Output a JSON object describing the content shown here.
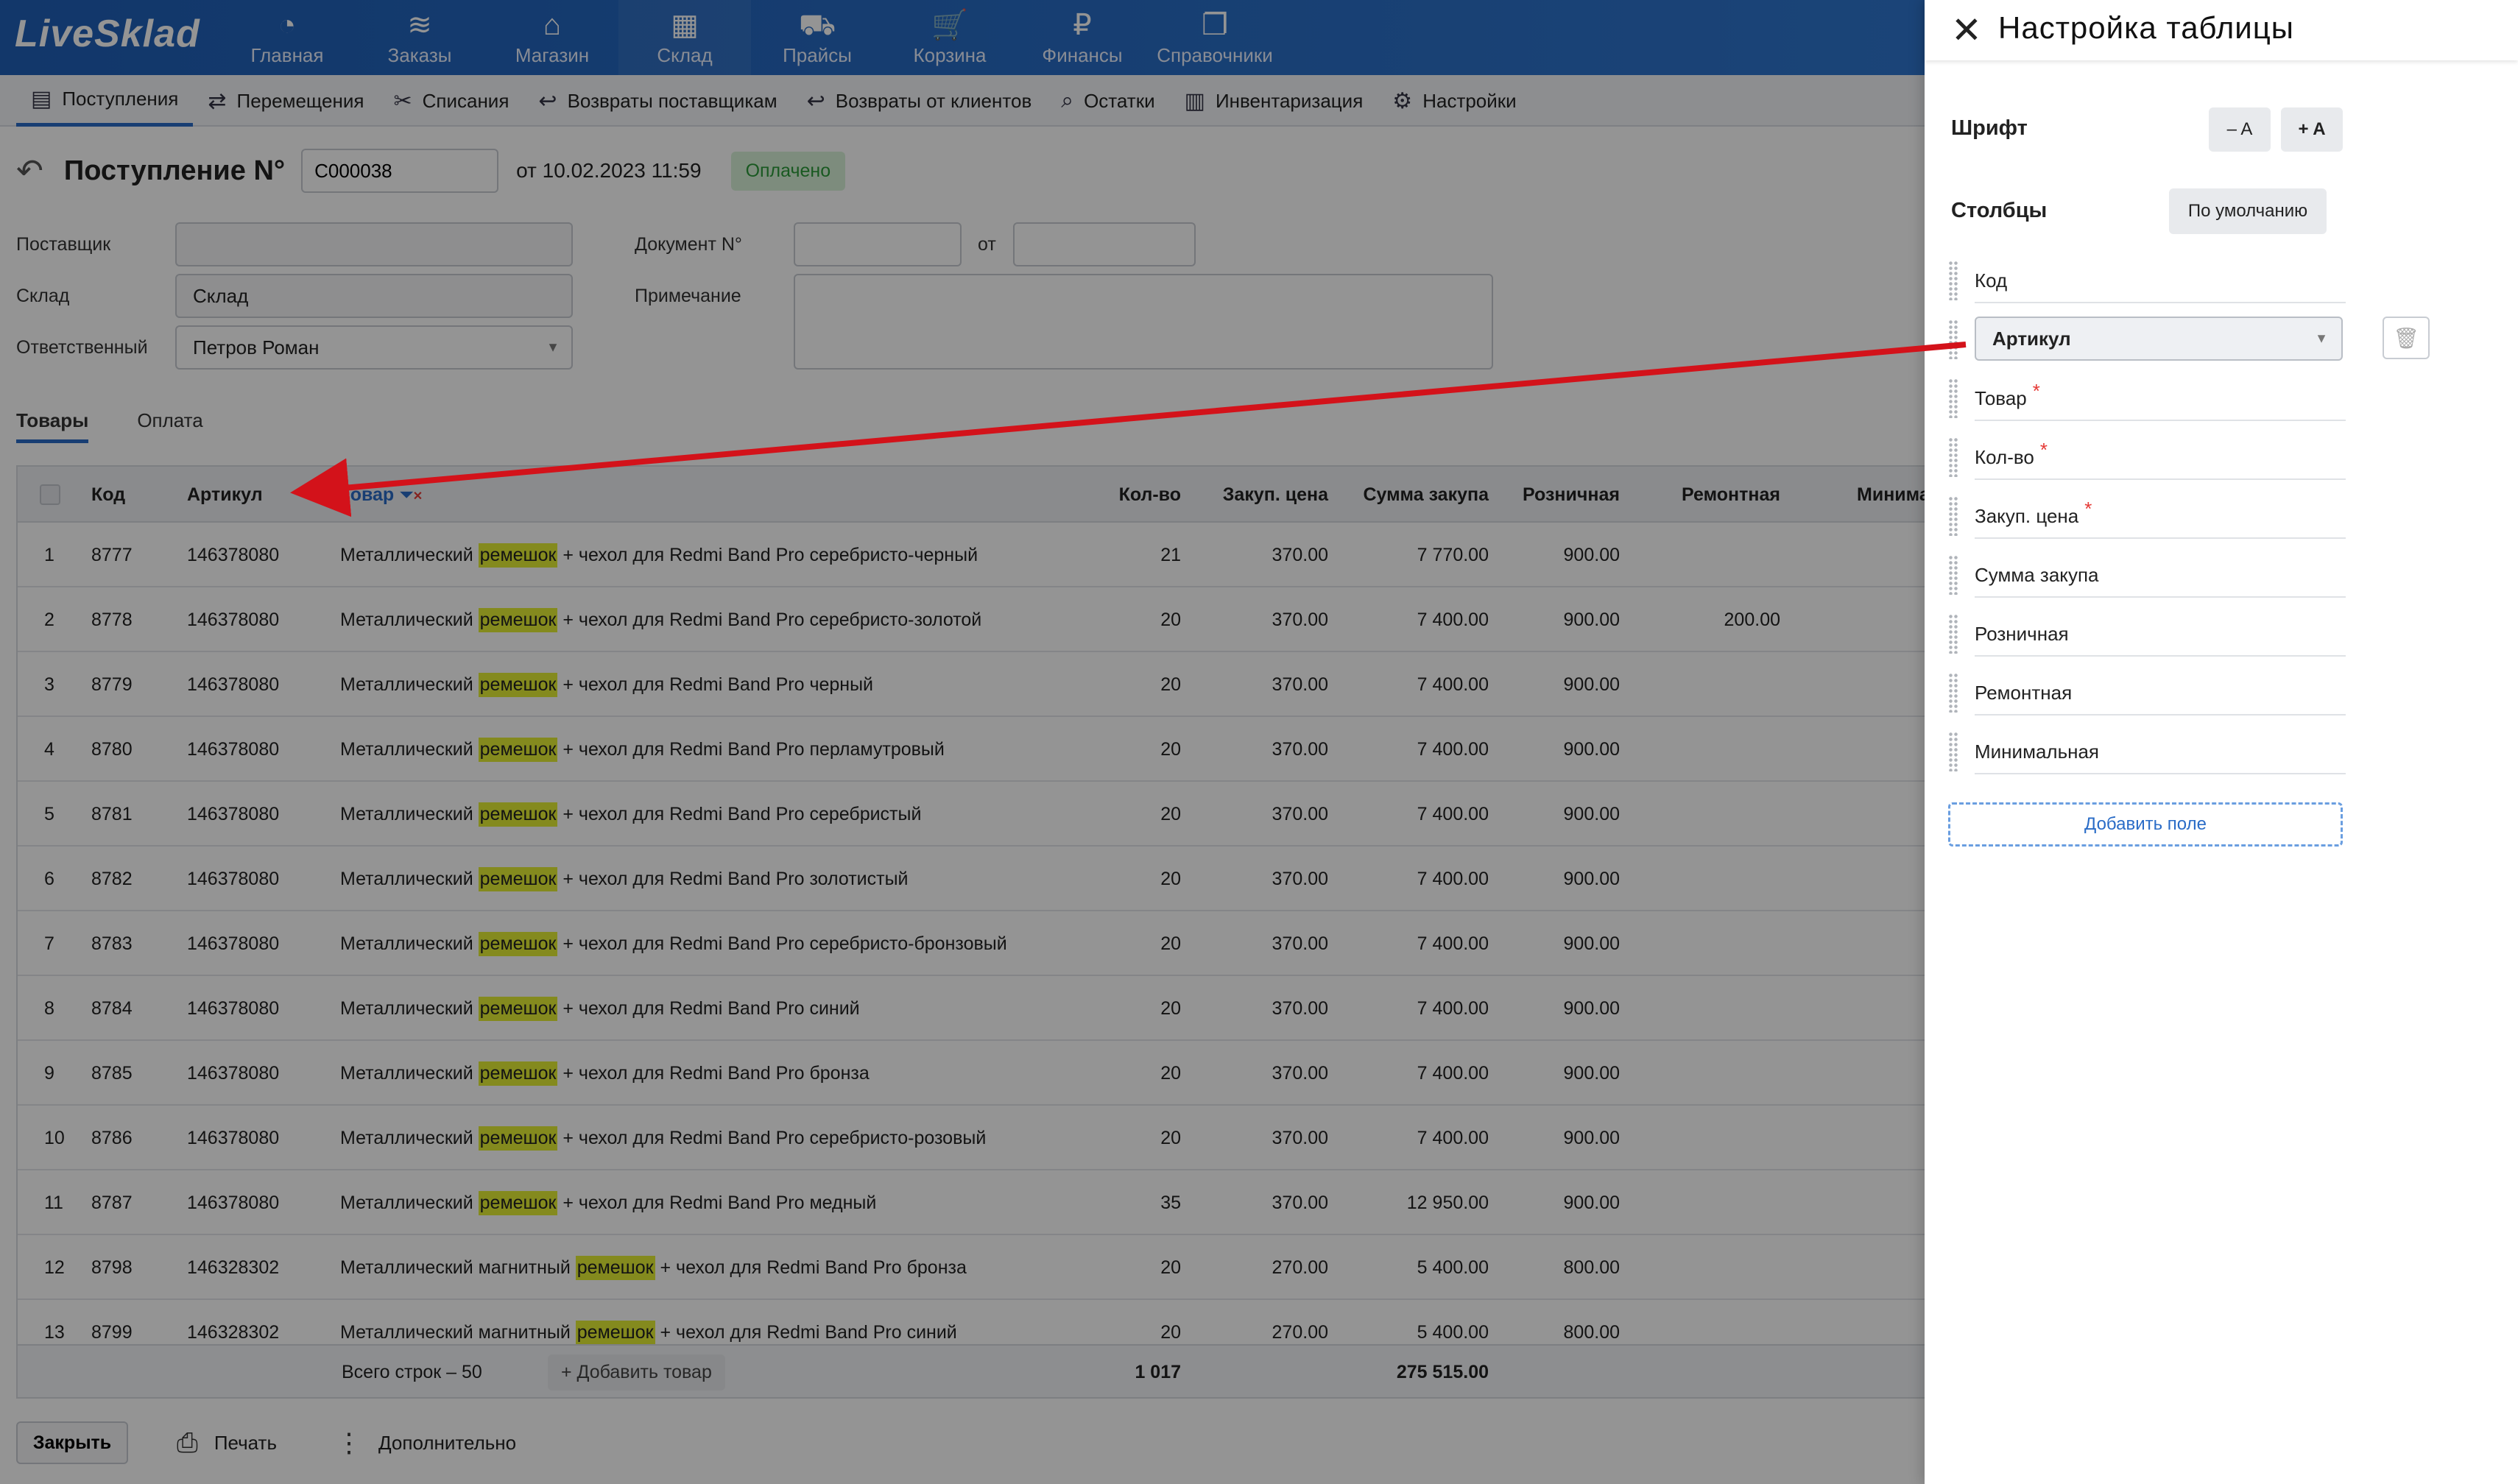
{
  "app": {
    "logo": "LiveSklad"
  },
  "top_nav": [
    {
      "label": "Главная",
      "icon": "dashboard-icon",
      "glyph": "◔"
    },
    {
      "label": "Заказы",
      "icon": "orders-icon",
      "glyph": "≋"
    },
    {
      "label": "Магазин",
      "icon": "shop-bag-icon",
      "glyph": "⌂"
    },
    {
      "label": "Склад",
      "icon": "warehouse-box-icon",
      "glyph": "▦"
    },
    {
      "label": "Прайсы",
      "icon": "truck-icon",
      "glyph": "⛟"
    },
    {
      "label": "Корзина",
      "icon": "cart-icon",
      "glyph": "🛒"
    },
    {
      "label": "Финансы",
      "icon": "ruble-icon",
      "glyph": "₽"
    },
    {
      "label": "Справочники",
      "icon": "directory-icon",
      "glyph": "❐"
    }
  ],
  "sub_nav": [
    {
      "label": "Поступления",
      "icon": "receipt-icon",
      "glyph": "▤"
    },
    {
      "label": "Перемещения",
      "icon": "shuffle-icon",
      "glyph": "⇄"
    },
    {
      "label": "Списания",
      "icon": "scissors-icon",
      "glyph": "✂"
    },
    {
      "label": "Возвраты поставщикам",
      "icon": "return-icon",
      "glyph": "↩"
    },
    {
      "label": "Возвраты от клиентов",
      "icon": "return-icon",
      "glyph": "↩"
    },
    {
      "label": "Остатки",
      "icon": "search-icon",
      "glyph": "⌕"
    },
    {
      "label": "Инвентаризация",
      "icon": "barcode-icon",
      "glyph": "▥"
    },
    {
      "label": "Настройки",
      "icon": "gear-icon",
      "glyph": "⚙"
    }
  ],
  "doc": {
    "title": "Поступление N°",
    "number": "C000038",
    "date_text": "от 10.02.2023 11:59",
    "status": "Оплачено"
  },
  "form": {
    "supplier_label": "Поставщик",
    "supplier_value": "",
    "warehouse_label": "Склад",
    "warehouse_value": "Склад",
    "responsible_label": "Ответственный",
    "responsible_value": "Петров Роман",
    "docnum_label": "Документ N°",
    "docnum_value": "",
    "from_label": "от",
    "from_value": "",
    "note_label": "Примечание",
    "note_value": ""
  },
  "tabs": [
    "Товары",
    "Оплата"
  ],
  "table": {
    "headers": {
      "code": "Код",
      "article": "Артикул",
      "product": "Товар",
      "qty": "Кол-во",
      "purchase_price": "Закуп. цена",
      "purchase_sum": "Сумма закупа",
      "retail": "Розничная",
      "repair": "Ремонтная",
      "min": "Минима"
    },
    "rows": [
      {
        "n": "1",
        "code": "8777",
        "article": "146378080",
        "pre": "Металлический ",
        "hl": "ремешок",
        "post": " + чехол для Redmi Band Pro серебристо-черный",
        "qty": "21",
        "price": "370.00",
        "sum": "7 770.00",
        "retail": "900.00",
        "repair": ""
      },
      {
        "n": "2",
        "code": "8778",
        "article": "146378080",
        "pre": "Металлический ",
        "hl": "ремешок",
        "post": " + чехол для Redmi Band Pro серебристо-золотой",
        "qty": "20",
        "price": "370.00",
        "sum": "7 400.00",
        "retail": "900.00",
        "repair": "200.00"
      },
      {
        "n": "3",
        "code": "8779",
        "article": "146378080",
        "pre": "Металлический ",
        "hl": "ремешок",
        "post": " + чехол для Redmi Band Pro черный",
        "qty": "20",
        "price": "370.00",
        "sum": "7 400.00",
        "retail": "900.00",
        "repair": ""
      },
      {
        "n": "4",
        "code": "8780",
        "article": "146378080",
        "pre": "Металлический ",
        "hl": "ремешок",
        "post": " + чехол для Redmi Band Pro перламутровый",
        "qty": "20",
        "price": "370.00",
        "sum": "7 400.00",
        "retail": "900.00",
        "repair": ""
      },
      {
        "n": "5",
        "code": "8781",
        "article": "146378080",
        "pre": "Металлический ",
        "hl": "ремешок",
        "post": " + чехол для Redmi Band Pro серебристый",
        "qty": "20",
        "price": "370.00",
        "sum": "7 400.00",
        "retail": "900.00",
        "repair": ""
      },
      {
        "n": "6",
        "code": "8782",
        "article": "146378080",
        "pre": "Металлический ",
        "hl": "ремешок",
        "post": " + чехол для Redmi Band Pro золотистый",
        "qty": "20",
        "price": "370.00",
        "sum": "7 400.00",
        "retail": "900.00",
        "repair": ""
      },
      {
        "n": "7",
        "code": "8783",
        "article": "146378080",
        "pre": "Металлический ",
        "hl": "ремешок",
        "post": " + чехол для Redmi Band Pro серебристо-бронзовый",
        "qty": "20",
        "price": "370.00",
        "sum": "7 400.00",
        "retail": "900.00",
        "repair": ""
      },
      {
        "n": "8",
        "code": "8784",
        "article": "146378080",
        "pre": "Металлический ",
        "hl": "ремешок",
        "post": " + чехол для Redmi Band Pro синий",
        "qty": "20",
        "price": "370.00",
        "sum": "7 400.00",
        "retail": "900.00",
        "repair": ""
      },
      {
        "n": "9",
        "code": "8785",
        "article": "146378080",
        "pre": "Металлический ",
        "hl": "ремешок",
        "post": " + чехол для Redmi Band Pro бронза",
        "qty": "20",
        "price": "370.00",
        "sum": "7 400.00",
        "retail": "900.00",
        "repair": ""
      },
      {
        "n": "10",
        "code": "8786",
        "article": "146378080",
        "pre": "Металлический ",
        "hl": "ремешок",
        "post": " + чехол для Redmi Band Pro серебристо-розовый",
        "qty": "20",
        "price": "370.00",
        "sum": "7 400.00",
        "retail": "900.00",
        "repair": ""
      },
      {
        "n": "11",
        "code": "8787",
        "article": "146378080",
        "pre": "Металлический ",
        "hl": "ремешок",
        "post": " + чехол для Redmi Band Pro медный",
        "qty": "35",
        "price": "370.00",
        "sum": "12 950.00",
        "retail": "900.00",
        "repair": ""
      },
      {
        "n": "12",
        "code": "8798",
        "article": "146328302",
        "pre": "Металлический магнитный ",
        "hl": "ремешок",
        "post": " + чехол для Redmi Band Pro бронза",
        "qty": "20",
        "price": "270.00",
        "sum": "5 400.00",
        "retail": "800.00",
        "repair": ""
      },
      {
        "n": "13",
        "code": "8799",
        "article": "146328302",
        "pre": "Металлический магнитный ",
        "hl": "ремешок",
        "post": " + чехол для Redmi Band Pro синий",
        "qty": "20",
        "price": "270.00",
        "sum": "5 400.00",
        "retail": "800.00",
        "repair": ""
      }
    ],
    "footer": {
      "total_rows": "Всего строк – 50",
      "add_product": "Добавить товар",
      "qty_total": "1 017",
      "sum_total": "275 515.00"
    }
  },
  "bottom": {
    "close": "Закрыть",
    "print": "Печать",
    "more": "Дополнительно"
  },
  "panel": {
    "title": "Настройка таблицы",
    "font_label": "Шрифт",
    "font_minus": "– A",
    "font_plus": "+ A",
    "columns_label": "Столбцы",
    "default_btn": "По умолчанию",
    "columns": [
      {
        "label": "Код",
        "required": false,
        "selected": false
      },
      {
        "label": "Артикул",
        "required": false,
        "selected": true
      },
      {
        "label": "Товар",
        "required": true,
        "selected": false
      },
      {
        "label": "Кол-во",
        "required": true,
        "selected": false
      },
      {
        "label": "Закуп. цена",
        "required": true,
        "selected": false
      },
      {
        "label": "Сумма закупа",
        "required": false,
        "selected": false
      },
      {
        "label": "Розничная",
        "required": false,
        "selected": false
      },
      {
        "label": "Ремонтная",
        "required": false,
        "selected": false
      },
      {
        "label": "Минимальная",
        "required": false,
        "selected": false
      }
    ],
    "add_field": "Добавить поле"
  },
  "colors": {
    "nav_blue": "#2a6cc7",
    "highlight": "#e3ee35",
    "paid_green": "#2c9a3a",
    "annotation_red": "#d3121a"
  }
}
